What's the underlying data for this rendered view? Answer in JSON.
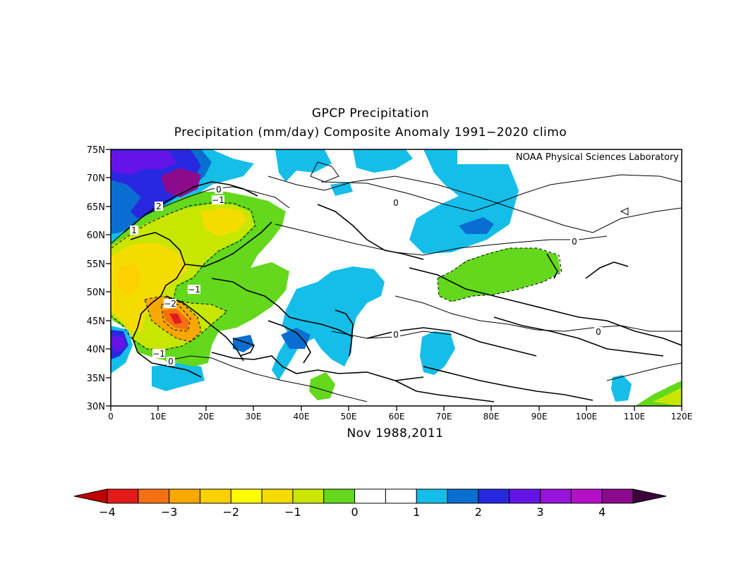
{
  "title": "GPCP Precipitation",
  "subtitle": "Precipitation (mm/day) Composite Anomaly 1991−2020 climo",
  "credit": "NOAA Physical Sciences Laboratory",
  "period": "Nov 1988,2011",
  "lat_labels": [
    "75N",
    "70N",
    "65N",
    "60N",
    "55N",
    "50N",
    "45N",
    "40N",
    "35N",
    "30N"
  ],
  "lon_labels": [
    "0",
    "10E",
    "20E",
    "30E",
    "40E",
    "50E",
    "60E",
    "70E",
    "80E",
    "90E",
    "100E",
    "110E",
    "120E"
  ],
  "colorbar": {
    "colors": [
      "#e41a1c",
      "#f47010",
      "#f9a800",
      "#fdd000",
      "#ffff00",
      "#f5dc00",
      "#c8e600",
      "#64d81c",
      "#ffffff",
      "#ffffff",
      "#14bee8",
      "#0a6ed0",
      "#2828e0",
      "#6414e6",
      "#9614dc",
      "#b410c8",
      "#8c0a8c"
    ],
    "under_color": "#c00000",
    "over_color": "#3c003c",
    "tick_labels": [
      "−4",
      "−3",
      "−2",
      "−1",
      "0",
      "1",
      "2",
      "3",
      "4"
    ]
  },
  "contour_labels": [
    "0",
    "−1",
    "2",
    "1",
    "−1",
    "−2",
    "−1",
    "0",
    "0",
    "0",
    "0",
    "0"
  ]
}
